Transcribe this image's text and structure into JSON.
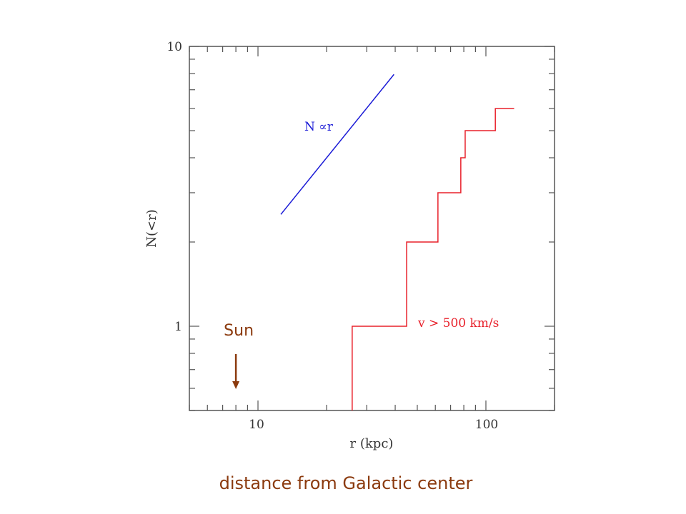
{
  "chart_data": {
    "type": "line",
    "title": "",
    "xlabel": "r (kpc)",
    "ylabel": "N(<r)",
    "xscale": "log",
    "yscale": "log",
    "xlim": [
      5,
      200
    ],
    "ylim": [
      0.5,
      10
    ],
    "x_tick_labels": [
      {
        "value": 10,
        "label": "10"
      },
      {
        "value": 100,
        "label": "100"
      }
    ],
    "y_tick_labels": [
      {
        "value": 1,
        "label": "1"
      },
      {
        "value": 10,
        "label": "10"
      }
    ],
    "grid": false,
    "series": [
      {
        "name": "N ∝ r",
        "kind": "line",
        "color": "#1a1ad6",
        "x": [
          12.6,
          39.5
        ],
        "y": [
          2.51,
          7.94
        ],
        "label": "N ∝r"
      },
      {
        "name": "v > 500 km/s",
        "kind": "step",
        "color": "#e8202a",
        "x": [
          25.9,
          44.9,
          61.6,
          77.6,
          81.1,
          110,
          133
        ],
        "y": [
          1,
          2,
          3,
          4,
          5,
          6,
          6
        ],
        "label": "v > 500 km/s"
      }
    ],
    "annotations": [
      {
        "text": "Sun",
        "x": 8,
        "kind": "down-arrow",
        "color": "#8b3a0e"
      }
    ]
  },
  "caption": "distance from Galactic center"
}
